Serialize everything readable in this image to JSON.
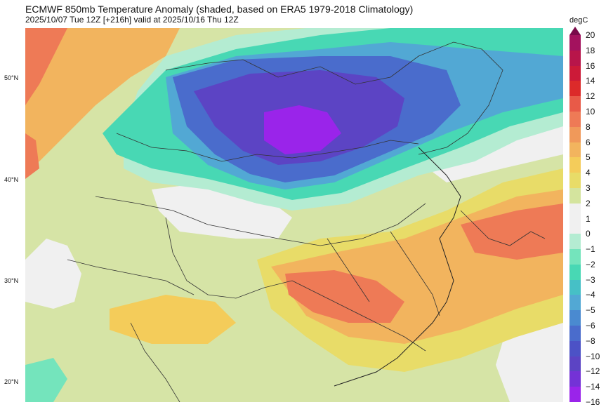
{
  "header": {
    "title": "ECMWF 850mb Temperature Anomaly (shaded, based on ERA5 1979-2018 Climatology)",
    "subtitle": "2025/10/07 Tue 12Z [+216h] valid at 2025/10/16 Thu 12Z"
  },
  "axis": {
    "lat_labels": [
      "50°N",
      "40°N",
      "30°N",
      "20°N"
    ]
  },
  "colorbar": {
    "unit": "degC",
    "ticks": [
      "20",
      "18",
      "16",
      "14",
      "12",
      "10",
      "8",
      "6",
      "5",
      "4",
      "3",
      "2",
      "1",
      "0",
      "−1",
      "−2",
      "−3",
      "−4",
      "−5",
      "−6",
      "−8",
      "−10",
      "−12",
      "−14",
      "−16"
    ],
    "colors": [
      "#a3125e",
      "#b8154a",
      "#cc1a38",
      "#dc2a2a",
      "#e85a48",
      "#ee7a56",
      "#f0995a",
      "#f2b45e",
      "#f4cc5a",
      "#e8dc68",
      "#d4e49e",
      "#f0f0f0",
      "#f0f0f0",
      "#b4ecd2",
      "#74e4bc",
      "#48d8b4",
      "#46c0c6",
      "#52a8d4",
      "#4a8ad0",
      "#4a6ccc",
      "#4c52c6",
      "#5c44c4",
      "#7432d6",
      "#9a24ea"
    ],
    "overflow_color": "#7a0a4a"
  },
  "map": {
    "background_color": "#d6e4a6",
    "cold_anomaly_center": "−16",
    "warm_anomaly_region": "6"
  }
}
